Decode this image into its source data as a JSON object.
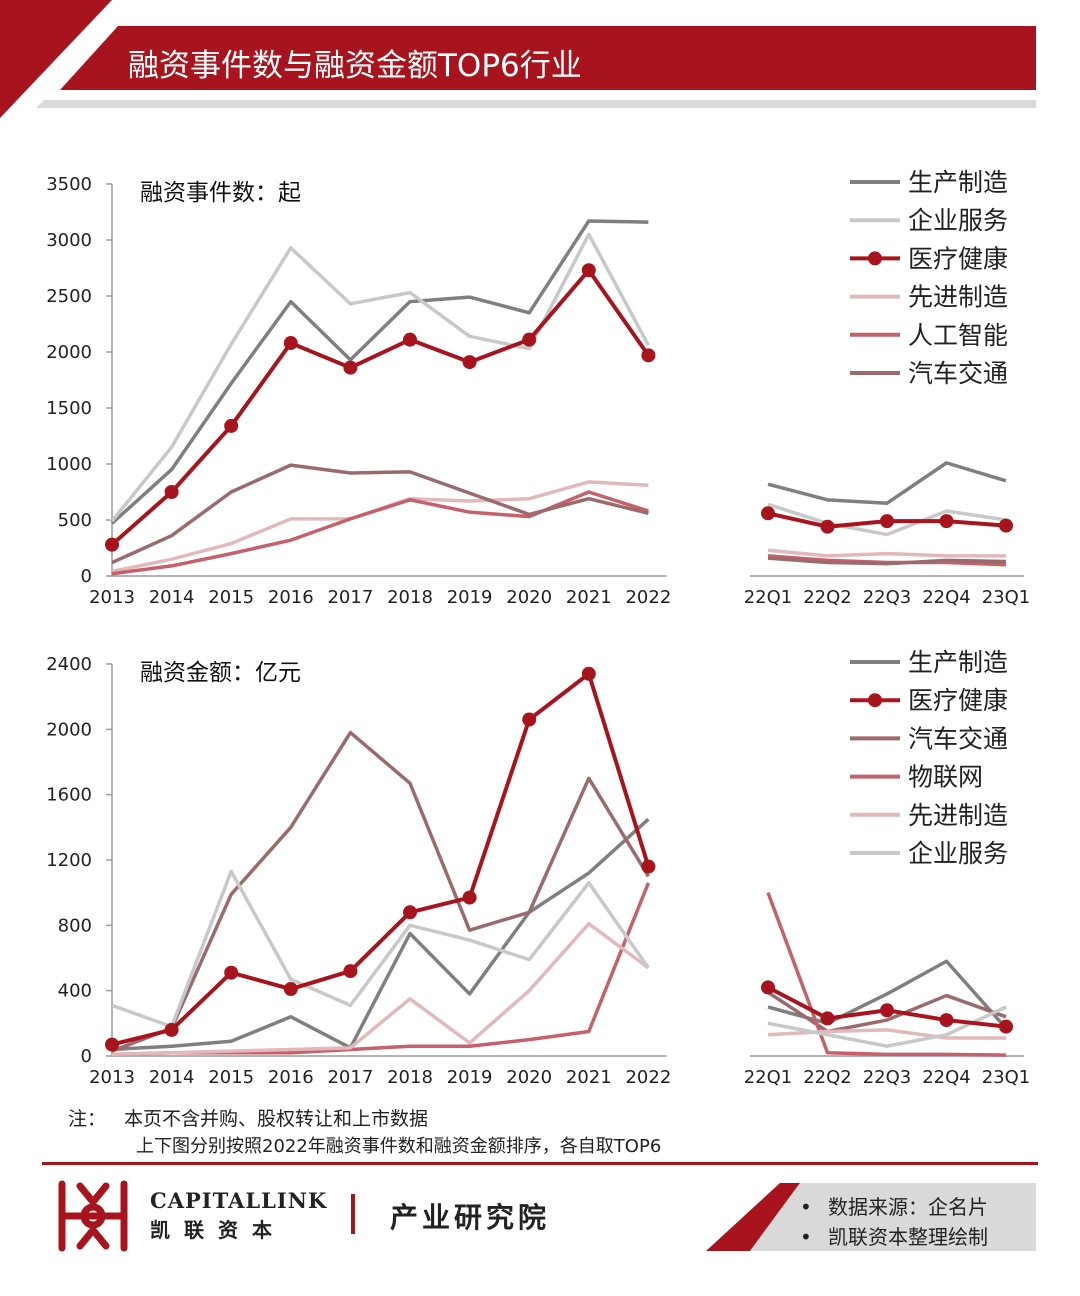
{
  "header": {
    "title": "融资事件数与融资金额TOP6行业"
  },
  "colors": {
    "brand_red": "#a8141d",
    "stripe_gray": "#d9d9d9"
  },
  "chart_data": [
    {
      "type": "line",
      "title": "融资事件数：起",
      "ylim": [
        0,
        3500
      ],
      "yticks": [
        "0",
        "500",
        "1000",
        "1500",
        "2000",
        "2500",
        "3000",
        "3500"
      ],
      "categories_annual": [
        "2013",
        "2014",
        "2015",
        "2016",
        "2017",
        "2018",
        "2019",
        "2020",
        "2021",
        "2022"
      ],
      "categories_quarterly": [
        "22Q1",
        "22Q2",
        "22Q3",
        "22Q4",
        "23Q1"
      ],
      "legend_position": "top-right",
      "series": [
        {
          "name": "生产制造",
          "color": "#7f7f7f",
          "marker": false,
          "annual": [
            470,
            950,
            1720,
            2450,
            1930,
            2450,
            2490,
            2350,
            3170,
            3160
          ],
          "quarterly": [
            820,
            680,
            650,
            1010,
            850
          ]
        },
        {
          "name": "企业服务",
          "color": "#c8c8c8",
          "marker": false,
          "annual": [
            490,
            1150,
            2070,
            2930,
            2430,
            2530,
            2140,
            2030,
            3050,
            2060
          ],
          "quarterly": [
            640,
            470,
            370,
            580,
            500
          ]
        },
        {
          "name": "医疗健康",
          "color": "#a8141d",
          "marker": true,
          "annual": [
            280,
            750,
            1340,
            2080,
            1860,
            2110,
            1910,
            2110,
            2730,
            1970
          ],
          "quarterly": [
            560,
            440,
            490,
            490,
            450
          ]
        },
        {
          "name": "先进制造",
          "color": "#e2b8bb",
          "marker": false,
          "annual": [
            40,
            150,
            290,
            510,
            510,
            690,
            670,
            690,
            840,
            810
          ],
          "quarterly": [
            230,
            180,
            200,
            180,
            180
          ]
        },
        {
          "name": "人工智能",
          "color": "#c6606a",
          "marker": false,
          "annual": [
            20,
            90,
            200,
            320,
            510,
            680,
            570,
            530,
            750,
            580
          ],
          "quarterly": [
            180,
            140,
            120,
            120,
            100
          ]
        },
        {
          "name": "汽车交通",
          "color": "#9b6a6c",
          "marker": false,
          "annual": [
            120,
            360,
            750,
            990,
            920,
            930,
            740,
            550,
            690,
            560
          ],
          "quarterly": [
            160,
            120,
            110,
            140,
            130
          ]
        }
      ]
    },
    {
      "type": "line",
      "title": "融资金额：亿元",
      "ylim": [
        0,
        2400
      ],
      "yticks": [
        "0",
        "400",
        "800",
        "1200",
        "1600",
        "2000",
        "2400"
      ],
      "categories_annual": [
        "2013",
        "2014",
        "2015",
        "2016",
        "2017",
        "2018",
        "2019",
        "2020",
        "2021",
        "2022"
      ],
      "categories_quarterly": [
        "22Q1",
        "22Q2",
        "22Q3",
        "22Q4",
        "23Q1"
      ],
      "legend_position": "top-right",
      "series": [
        {
          "name": "生产制造",
          "color": "#7f7f7f",
          "marker": false,
          "annual": [
            40,
            60,
            90,
            240,
            50,
            750,
            380,
            880,
            1120,
            1450
          ],
          "quarterly": [
            300,
            200,
            380,
            580,
            170
          ]
        },
        {
          "name": "医疗健康",
          "color": "#a8141d",
          "marker": true,
          "annual": [
            70,
            160,
            510,
            410,
            520,
            880,
            970,
            2060,
            2340,
            1160
          ],
          "quarterly": [
            420,
            230,
            280,
            220,
            180
          ]
        },
        {
          "name": "汽车交通",
          "color": "#9b6a6c",
          "marker": false,
          "annual": [
            30,
            170,
            990,
            1400,
            1980,
            1670,
            770,
            880,
            1700,
            1100
          ],
          "quarterly": [
            390,
            150,
            220,
            370,
            240
          ]
        },
        {
          "name": "物联网",
          "color": "#c6606a",
          "marker": false,
          "annual": [
            10,
            20,
            20,
            20,
            40,
            60,
            60,
            100,
            150,
            1060
          ],
          "quarterly": [
            1000,
            20,
            10,
            10,
            5
          ]
        },
        {
          "name": "先进制造",
          "color": "#e2b8bb",
          "marker": false,
          "annual": [
            10,
            20,
            30,
            40,
            50,
            350,
            80,
            400,
            810,
            540
          ],
          "quarterly": [
            130,
            150,
            160,
            110,
            110
          ]
        },
        {
          "name": "企业服务",
          "color": "#c8c8c8",
          "marker": false,
          "annual": [
            310,
            180,
            1130,
            470,
            310,
            800,
            710,
            590,
            1060,
            540
          ],
          "quarterly": [
            200,
            130,
            60,
            130,
            300
          ]
        }
      ]
    }
  ],
  "notes": {
    "label": "注：",
    "line1": "本页不含并购、股权转让和上市数据",
    "line2": "上下图分别按照2022年融资事件数和融资金额排序，各自取TOP6"
  },
  "footer": {
    "brand_en": "CAPITALLINK",
    "brand_cn": "凯联资本",
    "institute": "产业研究院",
    "sources": [
      "数据来源：企名片",
      "凯联资本整理绘制"
    ],
    "bullet": "•"
  }
}
